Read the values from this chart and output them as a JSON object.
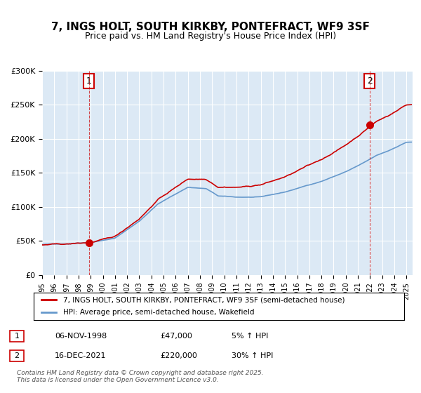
{
  "title": "7, INGS HOLT, SOUTH KIRKBY, PONTEFRACT, WF9 3SF",
  "subtitle": "Price paid vs. HM Land Registry's House Price Index (HPI)",
  "title_fontsize": 11,
  "subtitle_fontsize": 9,
  "background_color": "#dce9f5",
  "plot_bg_color": "#dce9f5",
  "legend_label_red": "7, INGS HOLT, SOUTH KIRKBY, PONTEFRACT, WF9 3SF (semi-detached house)",
  "legend_label_blue": "HPI: Average price, semi-detached house, Wakefield",
  "red_color": "#cc0000",
  "blue_color": "#6699cc",
  "marker1_date_x": 1998.85,
  "marker1_y": 47000,
  "marker2_date_x": 2021.96,
  "marker2_y": 220000,
  "vline1_x": 1998.85,
  "vline2_x": 2021.96,
  "annotation1_label": "1",
  "annotation2_label": "2",
  "table_row1": [
    "1",
    "06-NOV-1998",
    "£47,000",
    "5% ↑ HPI"
  ],
  "table_row2": [
    "2",
    "16-DEC-2021",
    "£220,000",
    "30% ↑ HPI"
  ],
  "footer": "Contains HM Land Registry data © Crown copyright and database right 2025.\nThis data is licensed under the Open Government Licence v3.0.",
  "ylim": [
    0,
    300000
  ],
  "xlim_start": 1995.0,
  "xlim_end": 2025.5,
  "yticks": [
    0,
    50000,
    100000,
    150000,
    200000,
    250000,
    300000
  ],
  "ytick_labels": [
    "£0",
    "£50K",
    "£100K",
    "£150K",
    "£200K",
    "£250K",
    "£300K"
  ],
  "xticks": [
    1995,
    1996,
    1997,
    1998,
    1999,
    2000,
    2001,
    2002,
    2003,
    2004,
    2005,
    2006,
    2007,
    2008,
    2009,
    2010,
    2011,
    2012,
    2013,
    2014,
    2015,
    2016,
    2017,
    2018,
    2019,
    2020,
    2021,
    2022,
    2023,
    2024,
    2025
  ]
}
